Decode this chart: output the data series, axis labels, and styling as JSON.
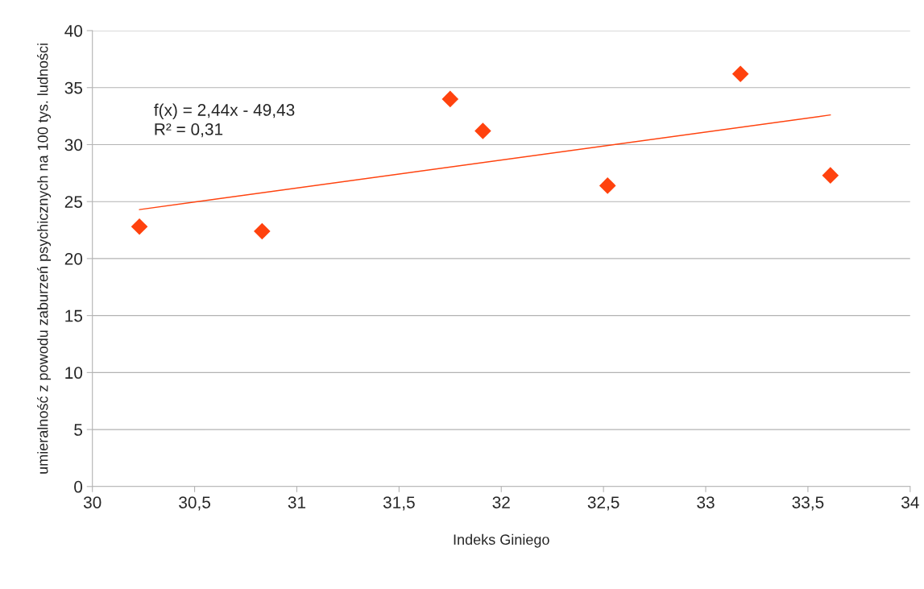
{
  "chart_data": {
    "type": "scatter",
    "xlabel": "Indeks Giniego",
    "ylabel": "umieralność z powodu zaburzeń psychicznych na 100 tys. ludności",
    "annotations": [
      "f(x) = 2,44x - 49,43\nR² = 0,31"
    ],
    "series": [
      {
        "color": "#ff420e",
        "marker": "diamond",
        "x": [
          30.23,
          30.83,
          31.75,
          31.91,
          32.52,
          33.17,
          33.61
        ],
        "values": [
          22.8,
          22.4,
          34.0,
          31.2,
          26.4,
          36.2,
          27.3
        ]
      },
      {
        "type": "line",
        "color": "#ff420e",
        "line_style": "solid",
        "x": [
          30.23,
          33.61
        ],
        "values": [
          24.3,
          32.6
        ]
      }
    ],
    "xlim": [
      30,
      34
    ],
    "xticks": [
      30,
      {
        "value": 30.5,
        "label": "30,5"
      },
      31,
      {
        "value": 31.5,
        "label": "31,5"
      },
      32,
      {
        "value": 32.5,
        "label": "32,5"
      },
      33,
      {
        "value": 33.5,
        "label": "33,5"
      },
      34
    ],
    "ylim": [
      0,
      40
    ],
    "yticks": [
      0,
      5,
      10,
      15,
      20,
      25,
      30,
      35,
      40
    ],
    "grid": "y"
  }
}
